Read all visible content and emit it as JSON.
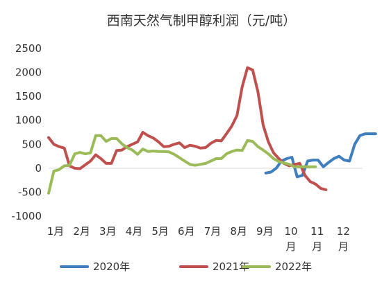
{
  "chart_data": {
    "type": "line",
    "title": "西南天然气制甲醇利润（元/吨）",
    "xlabel": "",
    "ylabel": "",
    "ylim": [
      -1000,
      2500
    ],
    "yticks": [
      "2500",
      "2000",
      "1500",
      "1000",
      "500",
      "0",
      "-500",
      "-1000"
    ],
    "ytick_values": [
      2500,
      2000,
      1500,
      1000,
      500,
      0,
      -500,
      -1000
    ],
    "months": [
      {
        "line1": "1月",
        "line2": ""
      },
      {
        "line1": "2月",
        "line2": ""
      },
      {
        "line1": "3月",
        "line2": ""
      },
      {
        "line1": "4月",
        "line2": ""
      },
      {
        "line1": "5月",
        "line2": ""
      },
      {
        "line1": "6月",
        "line2": ""
      },
      {
        "line1": "7月",
        "line2": ""
      },
      {
        "line1": "8月",
        "line2": ""
      },
      {
        "line1": "9月",
        "line2": ""
      },
      {
        "line1": "10",
        "line2": "月"
      },
      {
        "line1": "11",
        "line2": "月"
      },
      {
        "line1": "12",
        "line2": "月"
      }
    ],
    "x_max": 12,
    "grid": false,
    "legend_position": "bottom",
    "series": [
      {
        "name": "2020年",
        "color": "#3F7FBF",
        "x": [
          8.3,
          8.5,
          8.7,
          8.9,
          9.1,
          9.3,
          9.5,
          9.7,
          9.9,
          10.1,
          10.3,
          10.5,
          10.7,
          10.9,
          11.1,
          11.3,
          11.5,
          11.7,
          11.9,
          12.1,
          12.3,
          12.5
        ],
        "y": [
          -100,
          -80,
          0,
          150,
          200,
          230,
          -180,
          -150,
          150,
          170,
          170,
          30,
          120,
          200,
          250,
          170,
          150,
          500,
          680,
          720,
          720,
          720
        ]
      },
      {
        "name": "2021年",
        "color": "#C0504D",
        "x": [
          0,
          0.2,
          0.4,
          0.6,
          0.8,
          1.0,
          1.2,
          1.4,
          1.6,
          1.8,
          2.0,
          2.2,
          2.4,
          2.6,
          2.8,
          3.0,
          3.2,
          3.4,
          3.6,
          3.8,
          4.0,
          4.2,
          4.4,
          4.6,
          4.8,
          5.0,
          5.2,
          5.4,
          5.6,
          5.8,
          6.0,
          6.2,
          6.4,
          6.6,
          6.8,
          7.0,
          7.2,
          7.4,
          7.6,
          7.8,
          8.0,
          8.2,
          8.4,
          8.6,
          8.8,
          9.0,
          9.2,
          9.4,
          9.6,
          9.8,
          10.0,
          10.2,
          10.4,
          10.6,
          10.8,
          11.0,
          11.2,
          11.4,
          11.6,
          11.8,
          12.0,
          12.2,
          12.5
        ],
        "y": [
          640,
          500,
          450,
          420,
          50,
          0,
          -10,
          70,
          150,
          280,
          200,
          100,
          100,
          370,
          380,
          450,
          500,
          550,
          750,
          680,
          630,
          550,
          450,
          460,
          500,
          530,
          430,
          480,
          460,
          420,
          430,
          520,
          580,
          570,
          720,
          880,
          1100,
          1700,
          2100,
          2050,
          1600,
          900,
          550,
          320,
          200,
          100,
          50,
          80,
          100,
          -150,
          -280,
          -330,
          -420,
          -450,
          -450,
          -450,
          -450,
          -450,
          -450,
          -450,
          -450,
          -450,
          -450
        ],
        "_trim": 54
      },
      {
        "name": "2022年",
        "color": "#9BBB59",
        "x": [
          0,
          0.2,
          0.4,
          0.6,
          0.8,
          1.0,
          1.2,
          1.4,
          1.6,
          1.8,
          2.0,
          2.2,
          2.4,
          2.6,
          2.8,
          3.0,
          3.2,
          3.4,
          3.6,
          3.8,
          4.0,
          4.2,
          4.4,
          4.6,
          4.8,
          5.0,
          5.2,
          5.4,
          5.6,
          5.8,
          6.0,
          6.2,
          6.4,
          6.6,
          6.8,
          7.0,
          7.2,
          7.4,
          7.6,
          7.8,
          8.0,
          8.2,
          8.4,
          8.6,
          8.8,
          9.0,
          9.2,
          9.4,
          9.6,
          9.8,
          10.0,
          10.2
        ],
        "y": [
          -520,
          -60,
          -30,
          50,
          60,
          300,
          330,
          300,
          320,
          680,
          680,
          560,
          620,
          620,
          510,
          430,
          380,
          290,
          400,
          350,
          360,
          350,
          350,
          340,
          290,
          220,
          150,
          80,
          60,
          80,
          100,
          150,
          200,
          200,
          300,
          350,
          380,
          370,
          580,
          560,
          450,
          380,
          300,
          200,
          140,
          110,
          80,
          30,
          30,
          30,
          30,
          30
        ]
      }
    ]
  }
}
